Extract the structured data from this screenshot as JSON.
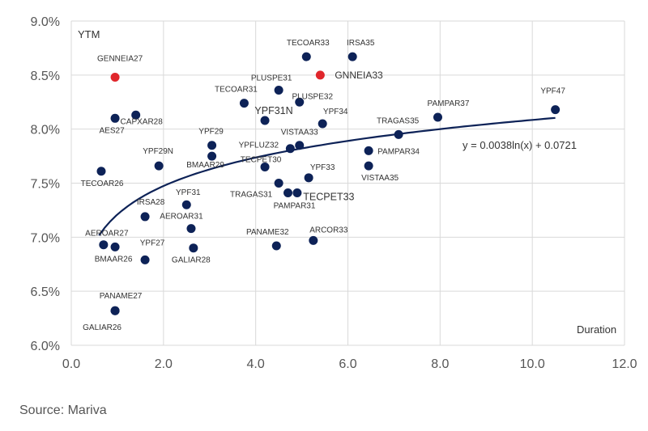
{
  "source": "Source: Mariva",
  "chart_data": {
    "type": "scatter",
    "title": "",
    "xlabel": "Duration",
    "ylabel": "YTM",
    "xlim": [
      0,
      12
    ],
    "ylim": [
      0.06,
      0.09
    ],
    "x_ticks": [
      0,
      2,
      4,
      6,
      8,
      10,
      12
    ],
    "x_tick_labels": [
      "0.0",
      "2.0",
      "4.0",
      "6.0",
      "8.0",
      "10.0",
      "12.0"
    ],
    "y_ticks": [
      0.06,
      0.065,
      0.07,
      0.075,
      0.08,
      0.085,
      0.09
    ],
    "y_tick_labels": [
      "6.0%",
      "6.5%",
      "7.0%",
      "7.5%",
      "8.0%",
      "8.5%",
      "9.0%"
    ],
    "grid": true,
    "colors": {
      "point": "#0d2257",
      "highlight": "#e0262b",
      "trend": "#0d2257",
      "grid": "#d9d9d9"
    },
    "trendline": {
      "label": "y = 0.0038ln(x) + 0.0721",
      "a": 0.0038,
      "b": 0.0721,
      "x_range": [
        0.6,
        10.5
      ]
    },
    "points": [
      {
        "name": "TECOAR33",
        "x": 5.1,
        "y": 0.0867
      },
      {
        "name": "IRSA35",
        "x": 6.1,
        "y": 0.0867
      },
      {
        "name": "GENNEIA27",
        "x": 0.95,
        "y": 0.0848,
        "highlight": true
      },
      {
        "name": "GNNEIA33",
        "x": 5.4,
        "y": 0.085,
        "highlight": true
      },
      {
        "name": "PLUSPE31",
        "x": 4.5,
        "y": 0.0836
      },
      {
        "name": "TECOAR31",
        "x": 3.75,
        "y": 0.0824
      },
      {
        "name": "PLUSPE32",
        "x": 4.95,
        "y": 0.0825
      },
      {
        "name": "CAPXAR28",
        "x": 1.4,
        "y": 0.0813
      },
      {
        "name": "AES27",
        "x": 0.95,
        "y": 0.081
      },
      {
        "name": "YPF31N",
        "x": 4.2,
        "y": 0.0808
      },
      {
        "name": "YPF34",
        "x": 5.45,
        "y": 0.0805
      },
      {
        "name": "PAMPAR37",
        "x": 7.95,
        "y": 0.0811
      },
      {
        "name": "YPF47",
        "x": 10.5,
        "y": 0.0818
      },
      {
        "name": "TRAGAS35",
        "x": 7.1,
        "y": 0.0795
      },
      {
        "name": "YPF29",
        "x": 3.05,
        "y": 0.0785
      },
      {
        "name": "VISTAA33",
        "x": 4.95,
        "y": 0.0785
      },
      {
        "name": "YPFLUZ32",
        "x": 4.75,
        "y": 0.0782
      },
      {
        "name": "PAMPAR34",
        "x": 6.45,
        "y": 0.078
      },
      {
        "name": "BMAAR29",
        "x": 3.05,
        "y": 0.0775
      },
      {
        "name": "YPF29N",
        "x": 1.9,
        "y": 0.0766
      },
      {
        "name": "TECPET30",
        "x": 4.2,
        "y": 0.0765
      },
      {
        "name": "VISTAA35",
        "x": 6.45,
        "y": 0.0766
      },
      {
        "name": "TECOAR26",
        "x": 0.65,
        "y": 0.0761
      },
      {
        "name": "YPF33",
        "x": 5.15,
        "y": 0.0755
      },
      {
        "name": "TRAGAS31",
        "x": 4.5,
        "y": 0.075
      },
      {
        "name": "PAMPAR31",
        "x": 4.7,
        "y": 0.0741
      },
      {
        "name": "TECPET33",
        "x": 4.9,
        "y": 0.0741
      },
      {
        "name": "YPF31",
        "x": 2.5,
        "y": 0.073
      },
      {
        "name": "IRSA28",
        "x": 1.6,
        "y": 0.0719
      },
      {
        "name": "AEROAR31",
        "x": 2.6,
        "y": 0.0708
      },
      {
        "name": "AEROAR27",
        "x": 0.7,
        "y": 0.0693
      },
      {
        "name": "BMAAR26",
        "x": 0.95,
        "y": 0.0691
      },
      {
        "name": "YPF27",
        "x": 1.6,
        "y": 0.0679
      },
      {
        "name": "GALIAR28",
        "x": 2.65,
        "y": 0.069
      },
      {
        "name": "PANAME32",
        "x": 4.45,
        "y": 0.0692
      },
      {
        "name": "ARCOR33",
        "x": 5.25,
        "y": 0.0697
      },
      {
        "name": "GALIAR26",
        "x": 0.95,
        "y": 0.0632
      },
      {
        "name": "PANAME27",
        "x": 0.95,
        "y": 0.0632
      }
    ]
  }
}
